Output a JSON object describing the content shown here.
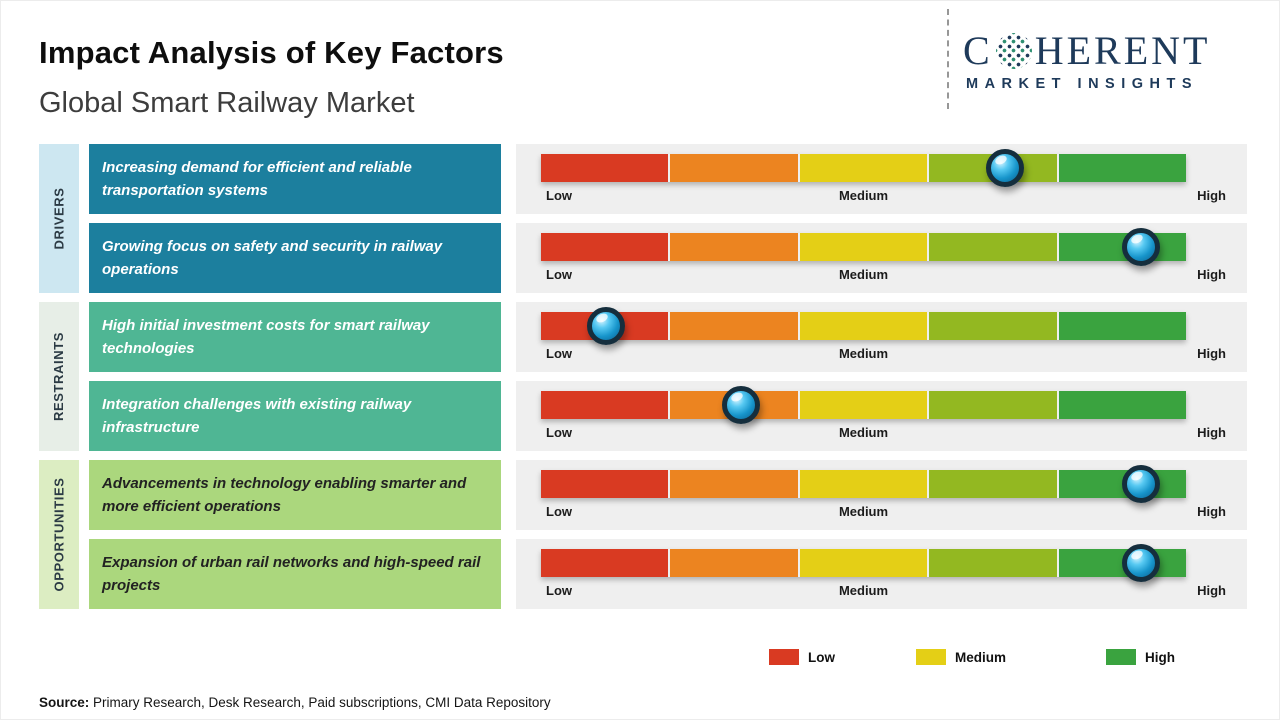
{
  "header": {
    "title": "Impact Analysis of Key Factors",
    "subtitle": "Global Smart Railway Market"
  },
  "logo": {
    "name_first_letter": "C",
    "name_rest": "HERENT",
    "tagline": "MARKET INSIGHTS",
    "color": "#1e3a5a"
  },
  "scale": {
    "low": "Low",
    "medium": "Medium",
    "high": "High"
  },
  "bar": {
    "track_color": "#efefef",
    "segment_colors": [
      "#d93a22",
      "#ec8420",
      "#e4cf16",
      "#93b821",
      "#3aa33f"
    ]
  },
  "groups": [
    {
      "label": "DRIVERS",
      "strip_color": "#cde7f1",
      "strip_text_color": "#2b3a44",
      "box_color": "#1c7f9e",
      "box_text_color": "#ffffff",
      "factors": [
        {
          "text": "Increasing demand for efficient and reliable transportation systems",
          "impact_pct": 72
        },
        {
          "text": "Growing focus on safety and security in railway operations",
          "impact_pct": 93
        }
      ]
    },
    {
      "label": "RESTRAINTS",
      "strip_color": "#e7eee7",
      "strip_text_color": "#2b3a44",
      "box_color": "#4fb694",
      "box_text_color": "#ffffff",
      "factors": [
        {
          "text": "High initial investment costs for smart railway technologies",
          "impact_pct": 10
        },
        {
          "text": "Integration challenges with existing railway infrastructure",
          "impact_pct": 31
        }
      ]
    },
    {
      "label": "OPPORTUNITIES",
      "strip_color": "#dcedc2",
      "strip_text_color": "#2b3a44",
      "box_color": "#abd77d",
      "box_text_color": "#222222",
      "factors": [
        {
          "text": "Advancements in technology enabling smarter and more efficient operations",
          "impact_pct": 93
        },
        {
          "text": "Expansion of urban rail networks and high-speed rail projects",
          "impact_pct": 93
        }
      ]
    }
  ],
  "legend": [
    {
      "label": "Low",
      "color": "#d93a22"
    },
    {
      "label": "Medium",
      "color": "#e4cf16"
    },
    {
      "label": "High",
      "color": "#3aa33f"
    }
  ],
  "source": {
    "label": "Source:",
    "text": " Primary Research, Desk Research, Paid subscriptions, CMI Data Repository"
  },
  "chart_data": {
    "type": "bar",
    "title": "Impact Analysis of Key Factors",
    "subtitle": "Global Smart Railway Market",
    "scale_labels": [
      "Low",
      "Medium",
      "High"
    ],
    "legend": [
      "Low",
      "Medium",
      "High"
    ],
    "categories": [
      "Increasing demand for efficient and reliable transportation systems",
      "Growing focus on safety and security in railway operations",
      "High initial investment costs for smart railway technologies",
      "Integration challenges with existing railway infrastructure",
      "Advancements in technology enabling smarter and more efficient operations",
      "Expansion of urban rail networks and high-speed rail projects"
    ],
    "series_groups": [
      "Drivers",
      "Drivers",
      "Restraints",
      "Restraints",
      "Opportunities",
      "Opportunities"
    ],
    "values": [
      72,
      93,
      10,
      31,
      93,
      93
    ],
    "value_scale": "0-100 marker position along Low-to-High impact axis",
    "layout": "horizontal impact bars with slider markers, scale labels under each bar, legend bottom right"
  }
}
